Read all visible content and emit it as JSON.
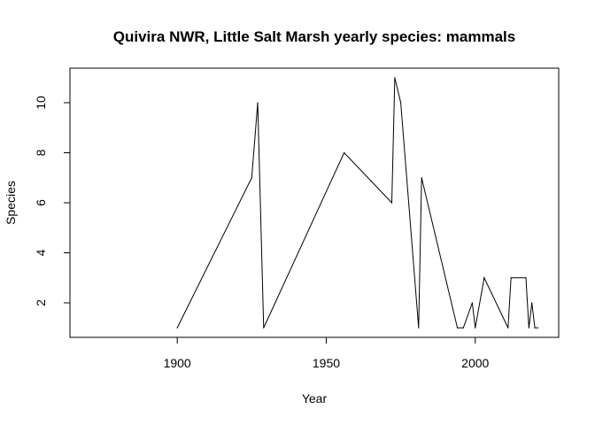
{
  "chart_data": {
    "type": "line",
    "title": "Quivira NWR, Little Salt Marsh yearly species: mammals",
    "xlabel": "Year",
    "ylabel": "Species",
    "xlim": [
      1864,
      2028
    ],
    "ylim": [
      0.62,
      11.38
    ],
    "x_ticks": [
      1900,
      1950,
      2000
    ],
    "y_ticks": [
      2,
      4,
      6,
      8,
      10
    ],
    "grid": false,
    "legend": "none",
    "line_color": "#000000",
    "series": [
      {
        "x": [
          1900,
          1925,
          1927,
          1929,
          1956,
          1972,
          1973,
          1975,
          1981,
          1982,
          1994,
          1996,
          1999,
          2000,
          2003,
          2011,
          2012,
          2017,
          2018,
          2019,
          2020,
          2021
        ],
        "values": [
          1,
          7,
          10,
          1,
          8,
          6,
          11,
          10,
          1,
          7,
          1,
          1,
          2,
          1,
          3,
          1,
          3,
          3,
          1,
          2,
          1,
          1
        ]
      }
    ]
  }
}
